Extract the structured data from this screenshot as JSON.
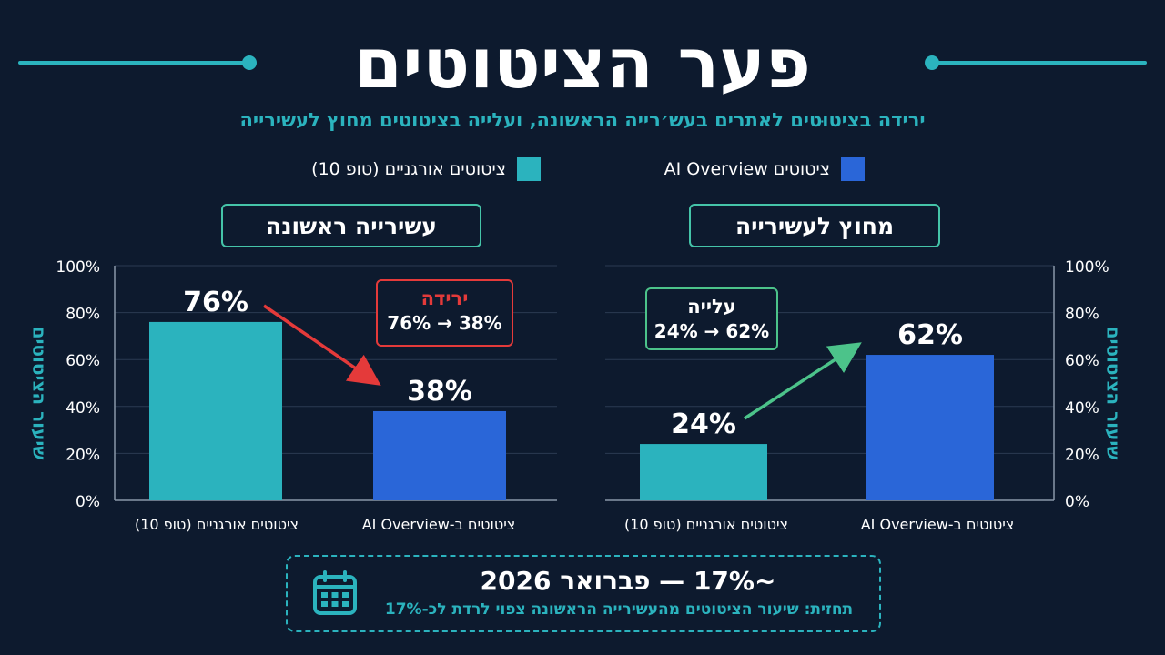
{
  "title": "פער הציטוטים",
  "subtitle": "ירידה בציטוּטים לאתרים בעש׳רייה הראשונה, ועלייה בציטוטים מחוץ לעשירייה",
  "legend": {
    "organic": "ציטוטים אורגניים (טופ 10)",
    "ai": "ציטוטים AI Overview"
  },
  "colors": {
    "organic": "#2bb3be",
    "ai": "#2a66d8",
    "background": "#0d1a2e",
    "accent": "#2bb3be",
    "drop": "#e43a3a",
    "rise": "#4cc38a"
  },
  "y_axis_label": "שיעור הציטוטים",
  "callouts": {
    "drop_title": "ירידה",
    "drop_value": "76% → 38%",
    "rise_title": "עלייה",
    "rise_value": "24% → 62%"
  },
  "bottom": {
    "main": "~17% — פברואר 2026",
    "note": "תחזית: שיעור הציטוטים מהעשירייה הראשונה צפוי לרדת לכ-17%",
    "icon": "calendar-icon"
  },
  "chart_data": [
    {
      "type": "bar",
      "title": "עשירייה ראשונה",
      "categories": [
        "ציטוטים אורגניים (טופ 10)",
        "ציטוטים ב-AI Overview"
      ],
      "values": [
        76,
        38
      ],
      "value_labels": [
        "76%",
        "38%"
      ],
      "ylabel": "שיעור הציטוטים",
      "ylim": [
        0,
        100
      ],
      "yticks": [
        "0%",
        "20%",
        "40%",
        "60%",
        "80%",
        "100%"
      ],
      "y_axis_side": "left",
      "grid": true
    },
    {
      "type": "bar",
      "title": "מחוץ לעשירייה",
      "categories": [
        "ציטוטים אורגניים (טופ 10)",
        "ציטוטים ב-AI Overview"
      ],
      "values": [
        24,
        62
      ],
      "value_labels": [
        "24%",
        "62%"
      ],
      "ylabel": "שיעור הציטוטים",
      "ylim": [
        0,
        100
      ],
      "yticks": [
        "0%",
        "20%",
        "40%",
        "60%",
        "80%",
        "100%"
      ],
      "y_axis_side": "right",
      "grid": true
    }
  ]
}
